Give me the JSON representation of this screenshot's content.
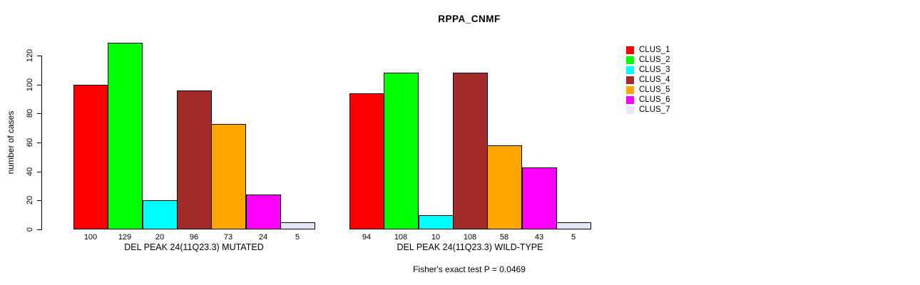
{
  "chart_data": {
    "type": "bar",
    "title": "RPPA_CNMF",
    "ylabel": "number of cases",
    "yticks": [
      0,
      20,
      40,
      60,
      80,
      100,
      120
    ],
    "ylim": [
      0,
      130
    ],
    "grid": false,
    "legend_position": "right",
    "annotation": "Fisher's exact test P = 0.0469",
    "categories": [
      "CLUS_1",
      "CLUS_2",
      "CLUS_3",
      "CLUS_4",
      "CLUS_5",
      "CLUS_6",
      "CLUS_7"
    ],
    "groups": [
      {
        "label": "DEL PEAK 24(11Q23.3) MUTATED",
        "values": [
          100,
          129,
          20,
          96,
          73,
          24,
          5
        ]
      },
      {
        "label": "DEL PEAK 24(11Q23.3) WILD-TYPE",
        "values": [
          94,
          108,
          10,
          108,
          58,
          43,
          5
        ]
      }
    ],
    "legend": [
      {
        "label": "CLUS_1",
        "color": "#FF0000"
      },
      {
        "label": "CLUS_2",
        "color": "#00FF00"
      },
      {
        "label": "CLUS_3",
        "color": "#00FFFF"
      },
      {
        "label": "CLUS_4",
        "color": "#A52A2A"
      },
      {
        "label": "CLUS_5",
        "color": "#FFA500"
      },
      {
        "label": "CLUS_6",
        "color": "#FF00FF"
      },
      {
        "label": "CLUS_7",
        "color": "#E6E6FA"
      }
    ],
    "axis_color": "#000000",
    "bar_border_color": "#000000"
  }
}
